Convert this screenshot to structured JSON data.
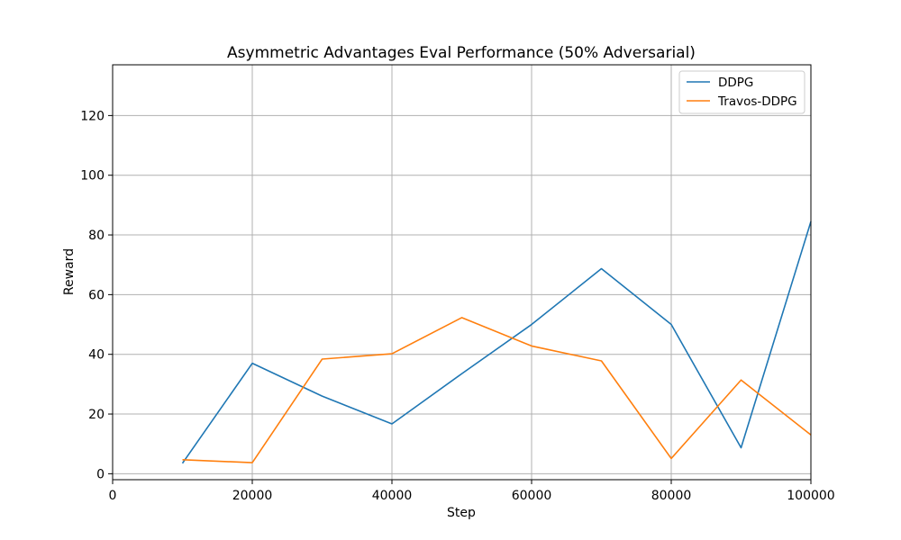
{
  "chart_data": {
    "type": "line",
    "title": "Asymmetric Advantages Eval Performance (50% Adversarial)",
    "xlabel": "Step",
    "ylabel": "Reward",
    "xlim": [
      0,
      100000
    ],
    "ylim": [
      -2,
      137
    ],
    "xticks": [
      0,
      20000,
      40000,
      60000,
      80000,
      100000
    ],
    "yticks": [
      0,
      20,
      40,
      60,
      80,
      100,
      120
    ],
    "grid": true,
    "legend_position": "top-right",
    "x": [
      10000,
      20000,
      30000,
      40000,
      50000,
      60000,
      70000,
      80000,
      90000,
      100000
    ],
    "series": [
      {
        "name": "DDPG",
        "color": "#1f77b4",
        "values": [
          3.5,
          37,
          26,
          16.7,
          33.5,
          50,
          68.7,
          50,
          8.7,
          84.5
        ]
      },
      {
        "name": "Travos-DDPG",
        "color": "#ff7f0e",
        "values": [
          4.7,
          3.7,
          38.4,
          40.2,
          52.3,
          42.8,
          37.8,
          5.1,
          31.4,
          13
        ]
      }
    ]
  }
}
